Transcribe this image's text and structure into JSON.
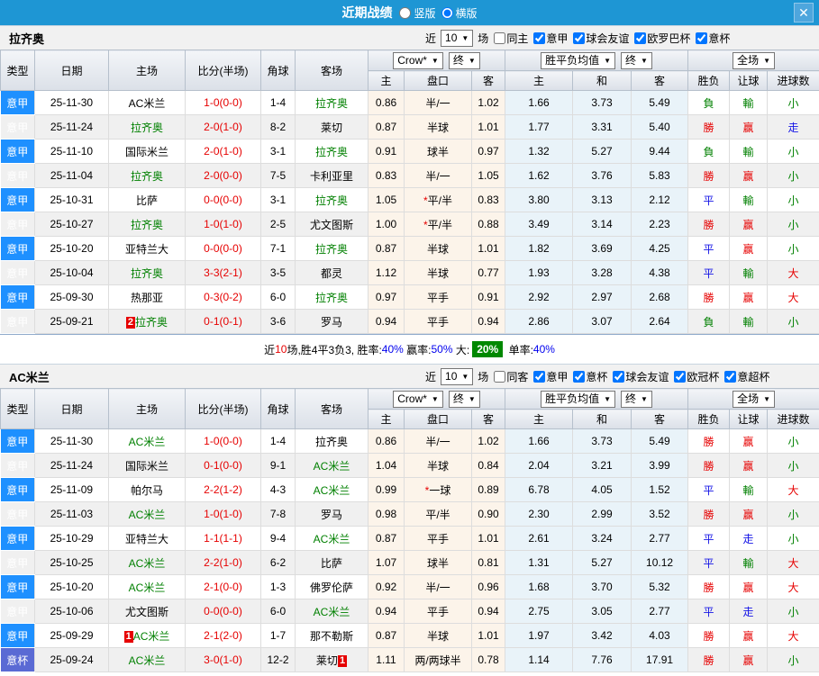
{
  "titlebar": {
    "title": "近期战绩",
    "radios": [
      {
        "label": "竖版",
        "checked": false
      },
      {
        "label": "横版",
        "checked": true
      }
    ],
    "close_icon": "✕"
  },
  "columns": {
    "type": "类型",
    "date": "日期",
    "home": "主场",
    "score": "比分(半场)",
    "corner": "角球",
    "away": "客场",
    "odds_home": "主",
    "handicap": "盘口",
    "odds_away": "客",
    "avg_win": "主",
    "avg_draw": "和",
    "avg_lose": "客",
    "result": "胜负",
    "let_ball": "让球",
    "goals": "进球数"
  },
  "colors": {
    "titlebar_bg": "#1E96D4",
    "league_type_bg": "#1E90FF",
    "cup_type_bg": "#5A6AD4",
    "win_red": "#E60000",
    "lose_green": "#008000",
    "draw_blue": "#1414E6",
    "team_green": "#008000",
    "summary_highlight_bg": "#008800"
  },
  "sections": [
    {
      "id": "lazio",
      "team": "拉齐奥",
      "filters": {
        "near_label": "近",
        "count": "10",
        "games_label": "场",
        "same_label": "同主",
        "same_checked": false,
        "leagues": [
          "意甲",
          "球会友谊",
          "欧罗巴杯",
          "意杯"
        ]
      },
      "controls": {
        "company": "Crow*",
        "period1": "终",
        "avg": "胜平负均值",
        "period2": "终",
        "scope": "全场"
      },
      "rows": [
        {
          "type": "意甲",
          "type_style": "league",
          "date": "25-11-30",
          "home": "AC米兰",
          "home_green": false,
          "home_badge": "",
          "score": "1-0(0-0)",
          "corners": "1-4",
          "away": "拉齐奥",
          "away_green": true,
          "away_badge": "",
          "crown_home": "0.86",
          "handicap_star": "",
          "handicap": "半/一",
          "crown_away": "1.02",
          "avg_win": "1.66",
          "avg_draw": "3.73",
          "avg_lose": "5.49",
          "result": "負",
          "result_color": "g",
          "handicap_result": "輸",
          "handicap_result_color": "g",
          "goals": "小",
          "goals_color": "g"
        },
        {
          "type": "意甲",
          "type_style": "league",
          "date": "25-11-24",
          "home": "拉齐奥",
          "home_green": true,
          "home_badge": "",
          "score": "2-0(1-0)",
          "corners": "8-2",
          "away": "莱切",
          "away_green": false,
          "away_badge": "",
          "crown_home": "0.87",
          "handicap_star": "",
          "handicap": "半球",
          "crown_away": "1.01",
          "avg_win": "1.77",
          "avg_draw": "3.31",
          "avg_lose": "5.40",
          "result": "勝",
          "result_color": "r",
          "handicap_result": "赢",
          "handicap_result_color": "r",
          "goals": "走",
          "goals_color": "b"
        },
        {
          "type": "意甲",
          "type_style": "league",
          "date": "25-11-10",
          "home": "国际米兰",
          "home_green": false,
          "home_badge": "",
          "score": "2-0(1-0)",
          "corners": "3-1",
          "away": "拉齐奥",
          "away_green": true,
          "away_badge": "",
          "crown_home": "0.91",
          "handicap_star": "",
          "handicap": "球半",
          "crown_away": "0.97",
          "avg_win": "1.32",
          "avg_draw": "5.27",
          "avg_lose": "9.44",
          "result": "負",
          "result_color": "g",
          "handicap_result": "輸",
          "handicap_result_color": "g",
          "goals": "小",
          "goals_color": "g"
        },
        {
          "type": "意甲",
          "type_style": "league",
          "date": "25-11-04",
          "home": "拉齐奥",
          "home_green": true,
          "home_badge": "",
          "score": "2-0(0-0)",
          "corners": "7-5",
          "away": "卡利亚里",
          "away_green": false,
          "away_badge": "",
          "crown_home": "0.83",
          "handicap_star": "",
          "handicap": "半/一",
          "crown_away": "1.05",
          "avg_win": "1.62",
          "avg_draw": "3.76",
          "avg_lose": "5.83",
          "result": "勝",
          "result_color": "r",
          "handicap_result": "赢",
          "handicap_result_color": "r",
          "goals": "小",
          "goals_color": "g"
        },
        {
          "type": "意甲",
          "type_style": "league",
          "date": "25-10-31",
          "home": "比萨",
          "home_green": false,
          "home_badge": "",
          "score": "0-0(0-0)",
          "corners": "3-1",
          "away": "拉齐奥",
          "away_green": true,
          "away_badge": "",
          "crown_home": "1.05",
          "handicap_star": "*",
          "handicap": "平/半",
          "crown_away": "0.83",
          "avg_win": "3.80",
          "avg_draw": "3.13",
          "avg_lose": "2.12",
          "result": "平",
          "result_color": "b",
          "handicap_result": "輸",
          "handicap_result_color": "g",
          "goals": "小",
          "goals_color": "g"
        },
        {
          "type": "意甲",
          "type_style": "league",
          "date": "25-10-27",
          "home": "拉齐奥",
          "home_green": true,
          "home_badge": "",
          "score": "1-0(1-0)",
          "corners": "2-5",
          "away": "尤文图斯",
          "away_green": false,
          "away_badge": "",
          "crown_home": "1.00",
          "handicap_star": "*",
          "handicap": "平/半",
          "crown_away": "0.88",
          "avg_win": "3.49",
          "avg_draw": "3.14",
          "avg_lose": "2.23",
          "result": "勝",
          "result_color": "r",
          "handicap_result": "赢",
          "handicap_result_color": "r",
          "goals": "小",
          "goals_color": "g"
        },
        {
          "type": "意甲",
          "type_style": "league",
          "date": "25-10-20",
          "home": "亚特兰大",
          "home_green": false,
          "home_badge": "",
          "score": "0-0(0-0)",
          "corners": "7-1",
          "away": "拉齐奥",
          "away_green": true,
          "away_badge": "",
          "crown_home": "0.87",
          "handicap_star": "",
          "handicap": "半球",
          "crown_away": "1.01",
          "avg_win": "1.82",
          "avg_draw": "3.69",
          "avg_lose": "4.25",
          "result": "平",
          "result_color": "b",
          "handicap_result": "赢",
          "handicap_result_color": "r",
          "goals": "小",
          "goals_color": "g"
        },
        {
          "type": "意甲",
          "type_style": "league",
          "date": "25-10-04",
          "home": "拉齐奥",
          "home_green": true,
          "home_badge": "",
          "score": "3-3(2-1)",
          "corners": "3-5",
          "away": "都灵",
          "away_green": false,
          "away_badge": "",
          "crown_home": "1.12",
          "handicap_star": "",
          "handicap": "半球",
          "crown_away": "0.77",
          "avg_win": "1.93",
          "avg_draw": "3.28",
          "avg_lose": "4.38",
          "result": "平",
          "result_color": "b",
          "handicap_result": "輸",
          "handicap_result_color": "g",
          "goals": "大",
          "goals_color": "r"
        },
        {
          "type": "意甲",
          "type_style": "league",
          "date": "25-09-30",
          "home": "热那亚",
          "home_green": false,
          "home_badge": "",
          "score": "0-3(0-2)",
          "corners": "6-0",
          "away": "拉齐奥",
          "away_green": true,
          "away_badge": "",
          "crown_home": "0.97",
          "handicap_star": "",
          "handicap": "平手",
          "crown_away": "0.91",
          "avg_win": "2.92",
          "avg_draw": "2.97",
          "avg_lose": "2.68",
          "result": "勝",
          "result_color": "r",
          "handicap_result": "赢",
          "handicap_result_color": "r",
          "goals": "大",
          "goals_color": "r"
        },
        {
          "type": "意甲",
          "type_style": "league",
          "date": "25-09-21",
          "home": "拉齐奥",
          "home_green": true,
          "home_badge": "2",
          "score": "0-1(0-1)",
          "corners": "3-6",
          "away": "罗马",
          "away_green": false,
          "away_badge": "",
          "crown_home": "0.94",
          "handicap_star": "",
          "handicap": "平手",
          "crown_away": "0.94",
          "avg_win": "2.86",
          "avg_draw": "3.07",
          "avg_lose": "2.64",
          "result": "負",
          "result_color": "g",
          "handicap_result": "輸",
          "handicap_result_color": "g",
          "goals": "小",
          "goals_color": "g"
        }
      ],
      "summary": [
        {
          "text": "近",
          "color": "k"
        },
        {
          "text": "10",
          "color": "r"
        },
        {
          "text": "场,胜4平3负3, 胜率:",
          "color": "k"
        },
        {
          "text": "40%",
          "color": "b"
        },
        {
          "text": " 赢率:",
          "color": "k"
        },
        {
          "text": "50%",
          "color": "b"
        },
        {
          "text": " 大:",
          "color": "k"
        },
        {
          "text": "20%",
          "color": "gbox"
        },
        {
          "text": " 单率:",
          "color": "k"
        },
        {
          "text": "40%",
          "color": "b"
        }
      ]
    },
    {
      "id": "ac-milan",
      "team": "AC米兰",
      "filters": {
        "near_label": "近",
        "count": "10",
        "games_label": "场",
        "same_label": "同客",
        "same_checked": false,
        "leagues": [
          "意甲",
          "意杯",
          "球会友谊",
          "欧冠杯",
          "意超杯"
        ]
      },
      "controls": {
        "company": "Crow*",
        "period1": "终",
        "avg": "胜平负均值",
        "period2": "终",
        "scope": "全场"
      },
      "rows": [
        {
          "type": "意甲",
          "type_style": "league",
          "date": "25-11-30",
          "home": "AC米兰",
          "home_green": true,
          "home_badge": "",
          "score": "1-0(0-0)",
          "corners": "1-4",
          "away": "拉齐奥",
          "away_green": false,
          "away_badge": "",
          "crown_home": "0.86",
          "handicap_star": "",
          "handicap": "半/一",
          "crown_away": "1.02",
          "avg_win": "1.66",
          "avg_draw": "3.73",
          "avg_lose": "5.49",
          "result": "勝",
          "result_color": "r",
          "handicap_result": "赢",
          "handicap_result_color": "r",
          "goals": "小",
          "goals_color": "g"
        },
        {
          "type": "意甲",
          "type_style": "league",
          "date": "25-11-24",
          "home": "国际米兰",
          "home_green": false,
          "home_badge": "",
          "score": "0-1(0-0)",
          "corners": "9-1",
          "away": "AC米兰",
          "away_green": true,
          "away_badge": "",
          "crown_home": "1.04",
          "handicap_star": "",
          "handicap": "半球",
          "crown_away": "0.84",
          "avg_win": "2.04",
          "avg_draw": "3.21",
          "avg_lose": "3.99",
          "result": "勝",
          "result_color": "r",
          "handicap_result": "赢",
          "handicap_result_color": "r",
          "goals": "小",
          "goals_color": "g"
        },
        {
          "type": "意甲",
          "type_style": "league",
          "date": "25-11-09",
          "home": "帕尔马",
          "home_green": false,
          "home_badge": "",
          "score": "2-2(1-2)",
          "corners": "4-3",
          "away": "AC米兰",
          "away_green": true,
          "away_badge": "",
          "crown_home": "0.99",
          "handicap_star": "*",
          "handicap": "一球",
          "crown_away": "0.89",
          "avg_win": "6.78",
          "avg_draw": "4.05",
          "avg_lose": "1.52",
          "result": "平",
          "result_color": "b",
          "handicap_result": "輸",
          "handicap_result_color": "g",
          "goals": "大",
          "goals_color": "r"
        },
        {
          "type": "意甲",
          "type_style": "league",
          "date": "25-11-03",
          "home": "AC米兰",
          "home_green": true,
          "home_badge": "",
          "score": "1-0(1-0)",
          "corners": "7-8",
          "away": "罗马",
          "away_green": false,
          "away_badge": "",
          "crown_home": "0.98",
          "handicap_star": "",
          "handicap": "平/半",
          "crown_away": "0.90",
          "avg_win": "2.30",
          "avg_draw": "2.99",
          "avg_lose": "3.52",
          "result": "勝",
          "result_color": "r",
          "handicap_result": "赢",
          "handicap_result_color": "r",
          "goals": "小",
          "goals_color": "g"
        },
        {
          "type": "意甲",
          "type_style": "league",
          "date": "25-10-29",
          "home": "亚特兰大",
          "home_green": false,
          "home_badge": "",
          "score": "1-1(1-1)",
          "corners": "9-4",
          "away": "AC米兰",
          "away_green": true,
          "away_badge": "",
          "crown_home": "0.87",
          "handicap_star": "",
          "handicap": "平手",
          "crown_away": "1.01",
          "avg_win": "2.61",
          "avg_draw": "3.24",
          "avg_lose": "2.77",
          "result": "平",
          "result_color": "b",
          "handicap_result": "走",
          "handicap_result_color": "b",
          "goals": "小",
          "goals_color": "g"
        },
        {
          "type": "意甲",
          "type_style": "league",
          "date": "25-10-25",
          "home": "AC米兰",
          "home_green": true,
          "home_badge": "",
          "score": "2-2(1-0)",
          "corners": "6-2",
          "away": "比萨",
          "away_green": false,
          "away_badge": "",
          "crown_home": "1.07",
          "handicap_star": "",
          "handicap": "球半",
          "crown_away": "0.81",
          "avg_win": "1.31",
          "avg_draw": "5.27",
          "avg_lose": "10.12",
          "result": "平",
          "result_color": "b",
          "handicap_result": "輸",
          "handicap_result_color": "g",
          "goals": "大",
          "goals_color": "r"
        },
        {
          "type": "意甲",
          "type_style": "league",
          "date": "25-10-20",
          "home": "AC米兰",
          "home_green": true,
          "home_badge": "",
          "score": "2-1(0-0)",
          "corners": "1-3",
          "away": "佛罗伦萨",
          "away_green": false,
          "away_badge": "",
          "crown_home": "0.92",
          "handicap_star": "",
          "handicap": "半/一",
          "crown_away": "0.96",
          "avg_win": "1.68",
          "avg_draw": "3.70",
          "avg_lose": "5.32",
          "result": "勝",
          "result_color": "r",
          "handicap_result": "赢",
          "handicap_result_color": "r",
          "goals": "大",
          "goals_color": "r"
        },
        {
          "type": "意甲",
          "type_style": "league",
          "date": "25-10-06",
          "home": "尤文图斯",
          "home_green": false,
          "home_badge": "",
          "score": "0-0(0-0)",
          "corners": "6-0",
          "away": "AC米兰",
          "away_green": true,
          "away_badge": "",
          "crown_home": "0.94",
          "handicap_star": "",
          "handicap": "平手",
          "crown_away": "0.94",
          "avg_win": "2.75",
          "avg_draw": "3.05",
          "avg_lose": "2.77",
          "result": "平",
          "result_color": "b",
          "handicap_result": "走",
          "handicap_result_color": "b",
          "goals": "小",
          "goals_color": "g"
        },
        {
          "type": "意甲",
          "type_style": "league",
          "date": "25-09-29",
          "home": "AC米兰",
          "home_green": true,
          "home_badge": "1",
          "score": "2-1(2-0)",
          "corners": "1-7",
          "away": "那不勒斯",
          "away_green": false,
          "away_badge": "",
          "crown_home": "0.87",
          "handicap_star": "",
          "handicap": "半球",
          "crown_away": "1.01",
          "avg_win": "1.97",
          "avg_draw": "3.42",
          "avg_lose": "4.03",
          "result": "勝",
          "result_color": "r",
          "handicap_result": "赢",
          "handicap_result_color": "r",
          "goals": "大",
          "goals_color": "r"
        },
        {
          "type": "意杯",
          "type_style": "cup",
          "date": "25-09-24",
          "home": "AC米兰",
          "home_green": true,
          "home_badge": "",
          "score": "3-0(1-0)",
          "corners": "12-2",
          "away": "莱切",
          "away_green": false,
          "away_badge": "1",
          "crown_home": "1.11",
          "handicap_star": "",
          "handicap": "两/两球半",
          "crown_away": "0.78",
          "avg_win": "1.14",
          "avg_draw": "7.76",
          "avg_lose": "17.91",
          "result": "勝",
          "result_color": "r",
          "handicap_result": "赢",
          "handicap_result_color": "r",
          "goals": "小",
          "goals_color": "g"
        }
      ],
      "summary": null
    }
  ]
}
